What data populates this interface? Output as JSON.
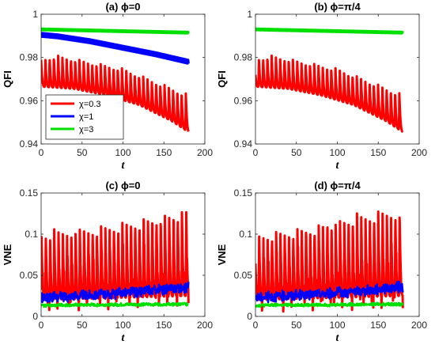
{
  "colors": {
    "chi03": "#ff0000",
    "chi1": "#0000ff",
    "chi3": "#00e000",
    "axis": "#262626"
  },
  "chart_data": [
    {
      "type": "line",
      "title": "(a) ϕ=0",
      "xlabel": "t",
      "ylabel": "QFI",
      "xlim": [
        0,
        200
      ],
      "ylim": [
        0.94,
        1.0
      ],
      "x_ticks": [
        "0",
        "50",
        "100",
        "150",
        "200"
      ],
      "y_ticks": [
        "0.94",
        "0.96",
        "0.98",
        "1"
      ],
      "grid": false,
      "legend": {
        "placement": "bottom-left",
        "entries": [
          "χ=0.3",
          "χ=1",
          "χ=3"
        ]
      },
      "series": [
        {
          "name": "χ=0.3",
          "color": "red",
          "style": "oscillating",
          "lower_x": [
            0,
            40,
            80,
            120,
            160,
            180
          ],
          "lower_y": [
            0.9665,
            0.9655,
            0.9625,
            0.958,
            0.9505,
            0.9455
          ],
          "upper_x": [
            0,
            20,
            60,
            100,
            140,
            180
          ],
          "upper_y": [
            0.9795,
            0.981,
            0.978,
            0.975,
            0.969,
            0.963
          ],
          "period": 5.2,
          "phase": 1.0
        },
        {
          "name": "χ=1",
          "color": "blue",
          "style": "smooth",
          "x": [
            0,
            20,
            60,
            100,
            140,
            180
          ],
          "y": [
            0.9905,
            0.9898,
            0.9875,
            0.9845,
            0.9815,
            0.978
          ],
          "band": 0.0008
        },
        {
          "name": "χ=3",
          "color": "green",
          "style": "smooth",
          "x": [
            0,
            180
          ],
          "y": [
            0.993,
            0.9915
          ],
          "band": 0.0003
        }
      ]
    },
    {
      "type": "line",
      "title": "(b) ϕ=π/4",
      "xlabel": "t",
      "ylabel": "QFI",
      "xlim": [
        0,
        200
      ],
      "ylim": [
        0.94,
        1.0
      ],
      "x_ticks": [
        "0",
        "50",
        "100",
        "150",
        "200"
      ],
      "y_ticks": [
        "0.94",
        "0.96",
        "0.98",
        "1"
      ],
      "grid": false,
      "series": [
        {
          "name": "χ=0.3",
          "color": "red",
          "style": "oscillating",
          "lower_x": [
            0,
            40,
            80,
            120,
            160,
            180
          ],
          "lower_y": [
            0.9665,
            0.9655,
            0.9625,
            0.958,
            0.9505,
            0.9455
          ],
          "upper_x": [
            0,
            20,
            60,
            100,
            140,
            180
          ],
          "upper_y": [
            0.9795,
            0.981,
            0.978,
            0.975,
            0.969,
            0.963
          ],
          "period": 5.2,
          "phase": 2.0
        },
        {
          "name": "χ=3",
          "color": "green",
          "style": "smooth",
          "x": [
            0,
            180
          ],
          "y": [
            0.993,
            0.9915
          ],
          "band": 0.0003
        }
      ]
    },
    {
      "type": "line",
      "title": "(c) ϕ=0",
      "xlabel": "t",
      "ylabel": "VNE",
      "xlim": [
        0,
        200
      ],
      "ylim": [
        0,
        0.15
      ],
      "x_ticks": [
        "0",
        "50",
        "100",
        "150",
        "200"
      ],
      "y_ticks": [
        "0",
        "0.05",
        "0.1",
        "0.15"
      ],
      "grid": false,
      "series": [
        {
          "name": "χ=0.3",
          "color": "red",
          "style": "oscillating",
          "lower_x": [
            0,
            180
          ],
          "lower_y": [
            0.02,
            0.025
          ],
          "upper_x": [
            0,
            60,
            120,
            180
          ],
          "upper_y": [
            0.1,
            0.108,
            0.118,
            0.128
          ],
          "period": 5.2,
          "phase": 0.5,
          "spike": 0.014
        },
        {
          "name": "χ=1",
          "color": "blue",
          "style": "noisy",
          "x": [
            0,
            60,
            120,
            180
          ],
          "y": [
            0.023,
            0.026,
            0.03,
            0.036
          ],
          "amp": 0.007
        },
        {
          "name": "χ=3",
          "color": "green",
          "style": "noisy",
          "x": [
            0,
            180
          ],
          "y": [
            0.0135,
            0.015
          ],
          "amp": 0.002
        }
      ]
    },
    {
      "type": "line",
      "title": "(d) ϕ=π/4",
      "xlabel": "t",
      "ylabel": "VNE",
      "xlim": [
        0,
        200
      ],
      "ylim": [
        0,
        0.15
      ],
      "x_ticks": [
        "0",
        "50",
        "100",
        "150",
        "200"
      ],
      "y_ticks": [
        "0",
        "0.05",
        "0.1",
        "0.15"
      ],
      "grid": false,
      "series": [
        {
          "name": "χ=0.3",
          "color": "red",
          "style": "oscillating",
          "lower_x": [
            0,
            180
          ],
          "lower_y": [
            0.02,
            0.025
          ],
          "upper_x": [
            0,
            60,
            120,
            180
          ],
          "upper_y": [
            0.1,
            0.108,
            0.12,
            0.13
          ],
          "period": 5.2,
          "phase": 1.7,
          "spike": 0.016
        },
        {
          "name": "χ=1",
          "color": "blue",
          "style": "noisy",
          "x": [
            0,
            60,
            120,
            180
          ],
          "y": [
            0.023,
            0.026,
            0.03,
            0.036
          ],
          "amp": 0.007
        },
        {
          "name": "χ=3",
          "color": "green",
          "style": "noisy",
          "x": [
            0,
            180
          ],
          "y": [
            0.0135,
            0.015
          ],
          "amp": 0.002
        }
      ]
    }
  ]
}
